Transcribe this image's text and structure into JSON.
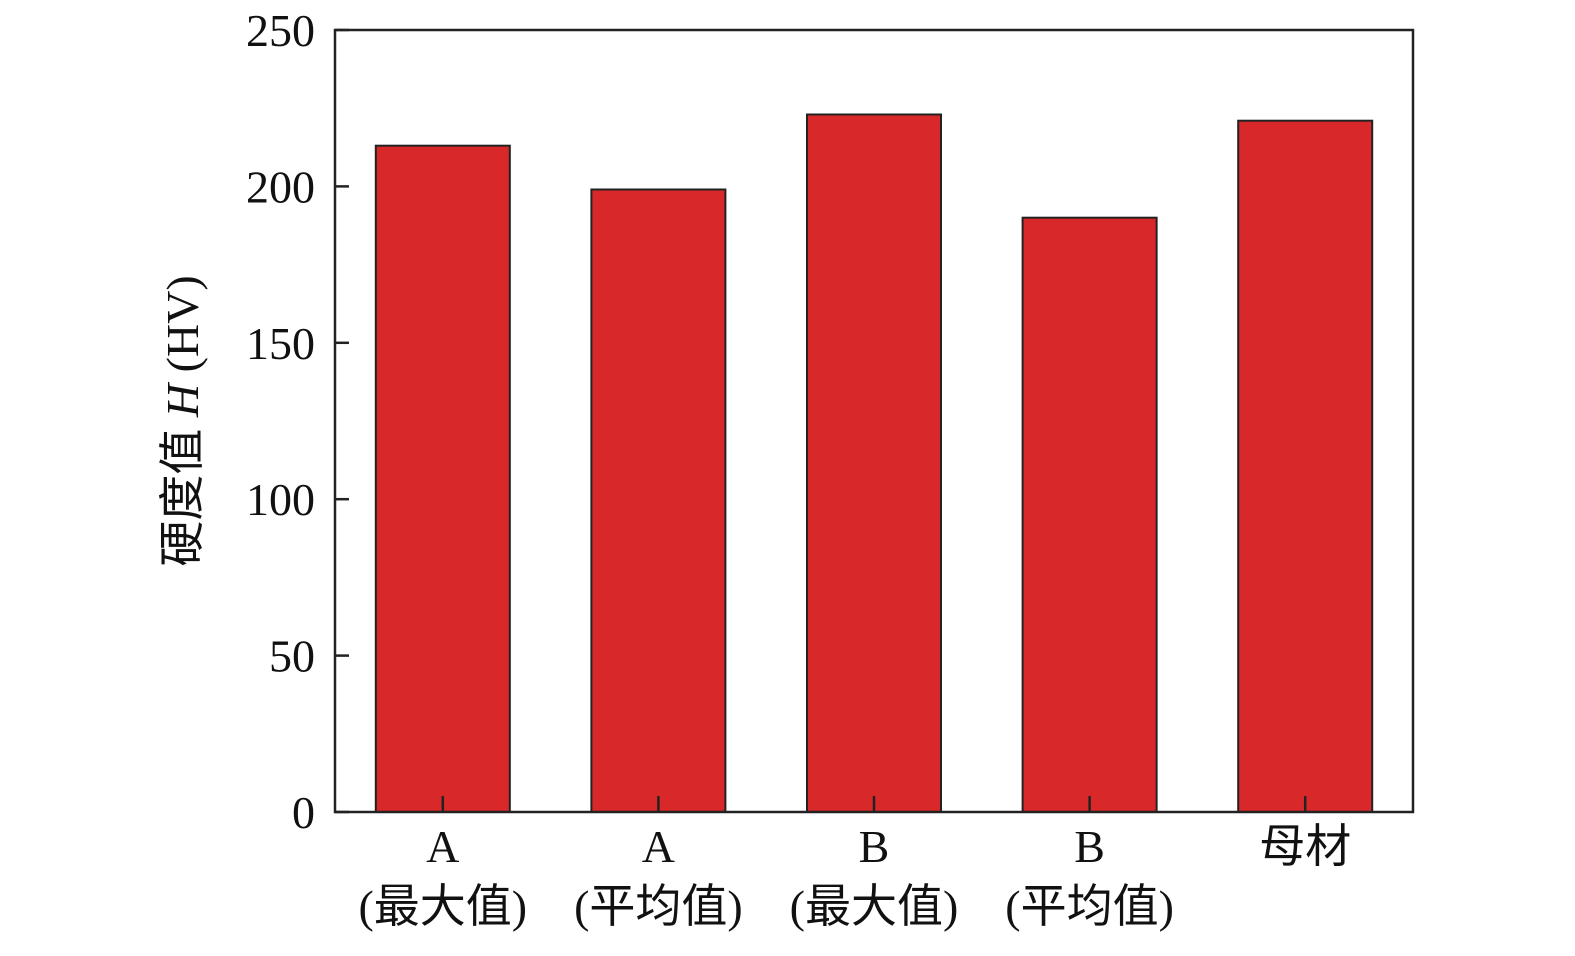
{
  "chart_data": {
    "type": "bar",
    "categories": [
      [
        "A",
        "(最大值)"
      ],
      [
        "A",
        "(平均值)"
      ],
      [
        "B",
        "(最大值)"
      ],
      [
        "B",
        "(平均值)"
      ],
      [
        "母材"
      ]
    ],
    "values": [
      213,
      199,
      223,
      190,
      221
    ],
    "ylabel_main": "硬度值",
    "ylabel_var": "H",
    "ylabel_unit": "(HV)",
    "ylim": [
      0,
      250
    ],
    "yticks": [
      0,
      50,
      100,
      150,
      200,
      250
    ],
    "grid": false,
    "bar_color": "#d92829"
  }
}
